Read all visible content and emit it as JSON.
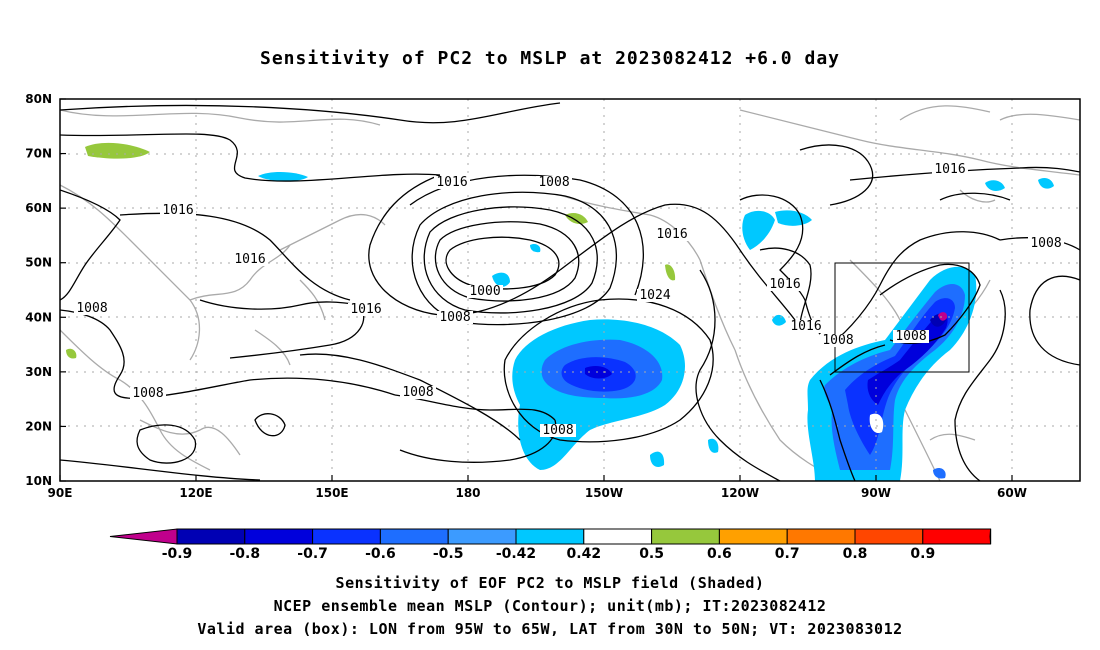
{
  "title": "Sensitivity of PC2 to MSLP at 2023082412 +6.0 day",
  "lat_ticks": [
    "80N",
    "70N",
    "60N",
    "50N",
    "40N",
    "30N",
    "20N",
    "10N"
  ],
  "lon_ticks": [
    "90E",
    "120E",
    "150E",
    "180",
    "150W",
    "120W",
    "90W",
    "60W"
  ],
  "contour_labels": [
    "1008",
    "1008",
    "1016",
    "1016",
    "1016",
    "1000",
    "1008",
    "1024",
    "1016",
    "1008",
    "1016",
    "1016",
    "1016",
    "1008",
    "1008",
    "1008",
    "1016",
    "1008",
    "1008"
  ],
  "colorbar": {
    "labels": [
      "-0.9",
      "-0.8",
      "-0.7",
      "-0.6",
      "-0.5",
      "-0.42",
      "0.42",
      "0.5",
      "0.6",
      "0.7",
      "0.8",
      "0.9"
    ],
    "colors": [
      "#c0008c",
      "#0000b4",
      "#0000dc",
      "#0a32ff",
      "#1e6eff",
      "#3c9bff",
      "#00c8ff",
      "#ffffff",
      "#96c83c",
      "#ffa000",
      "#ff7800",
      "#ff4600",
      "#ff0000",
      "#f0a0c8"
    ]
  },
  "valid_box": {
    "lon_w": "95W",
    "lon_e": "65W",
    "lat_s": "30N",
    "lat_n": "50N"
  },
  "captions": {
    "line1": "Sensitivity of EOF PC2 to MSLP field (Shaded)",
    "line2": "NCEP ensemble mean MSLP (Contour); unit(mb); IT:2023082412",
    "line3": "Valid area (box): LON from 95W to 65W, LAT from 30N to 50N; VT: 2023083012"
  }
}
